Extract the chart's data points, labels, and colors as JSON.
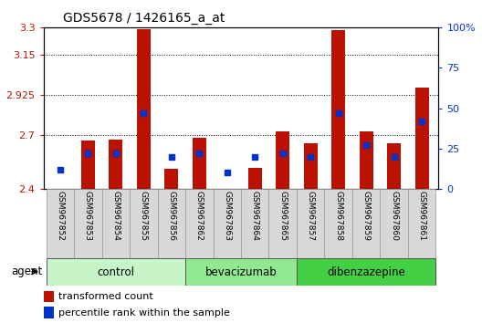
{
  "title": "GDS5678 / 1426165_a_at",
  "samples": [
    "GSM967852",
    "GSM967853",
    "GSM967854",
    "GSM967855",
    "GSM967856",
    "GSM967862",
    "GSM967863",
    "GSM967864",
    "GSM967865",
    "GSM967857",
    "GSM967858",
    "GSM967859",
    "GSM967860",
    "GSM967861"
  ],
  "red_values": [
    2.401,
    2.672,
    2.676,
    3.29,
    2.51,
    2.685,
    2.401,
    2.515,
    2.72,
    2.655,
    3.285,
    2.72,
    2.655,
    2.965
  ],
  "blue_values": [
    12,
    22,
    22,
    47,
    20,
    22,
    10,
    20,
    22,
    20,
    47,
    27,
    20,
    42
  ],
  "groups": [
    {
      "name": "control",
      "start": 0,
      "end": 5,
      "color": "#c8f5c8"
    },
    {
      "name": "bevacizumab",
      "start": 5,
      "end": 9,
      "color": "#90e890"
    },
    {
      "name": "dibenzazepine",
      "start": 9,
      "end": 14,
      "color": "#44d044"
    }
  ],
  "y_min": 2.4,
  "y_max": 3.3,
  "y_ticks": [
    2.4,
    2.7,
    2.925,
    3.15,
    3.3
  ],
  "y_ticks_labels": [
    "2.4",
    "2.7",
    "2.925",
    "3.15",
    "3.3"
  ],
  "y2_ticks": [
    0,
    25,
    50,
    75,
    100
  ],
  "y2_ticks_labels": [
    "0",
    "25",
    "50",
    "75",
    "100%"
  ],
  "red_color": "#bb1100",
  "blue_color": "#0033cc",
  "bar_width": 0.5,
  "agent_label": "agent",
  "legend_red": "transformed count",
  "legend_blue": "percentile rank within the sample"
}
